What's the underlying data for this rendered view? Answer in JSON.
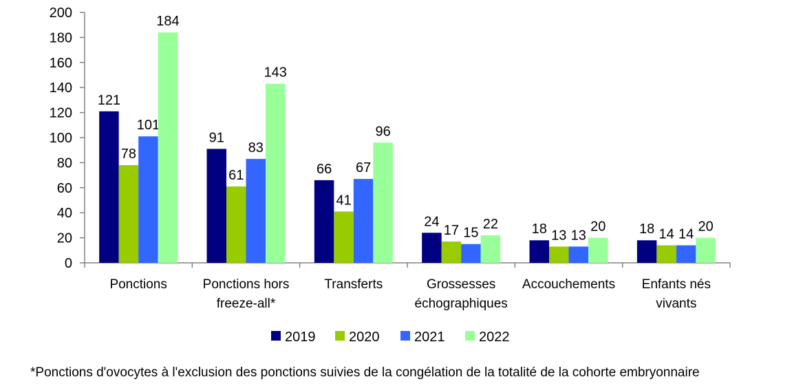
{
  "chart_data": {
    "type": "bar",
    "categories": [
      [
        "Ponctions"
      ],
      [
        "Ponctions hors",
        "freeze-all*"
      ],
      [
        "Transferts"
      ],
      [
        "Grossesses",
        "échographiques"
      ],
      [
        "Accouchements"
      ],
      [
        "Enfants nés",
        "vivants"
      ]
    ],
    "series": [
      {
        "name": "2019",
        "color": "#000080",
        "values": [
          121,
          91,
          66,
          24,
          18,
          18
        ]
      },
      {
        "name": "2020",
        "color": "#99CC00",
        "values": [
          78,
          61,
          41,
          17,
          13,
          14
        ]
      },
      {
        "name": "2021",
        "color": "#3366FF",
        "values": [
          101,
          83,
          67,
          15,
          13,
          14
        ]
      },
      {
        "name": "2022",
        "color": "#99FF99",
        "values": [
          184,
          143,
          96,
          22,
          20,
          20
        ]
      }
    ],
    "ylim": [
      0,
      200
    ],
    "yticks": [
      0,
      20,
      40,
      60,
      80,
      100,
      120,
      140,
      160,
      180,
      200
    ],
    "grid": false,
    "legend_position": "bottom",
    "data_labels": true
  },
  "footnote": "*Ponctions d'ovocytes à l'exclusion des ponctions suivies de la congélation de la totalité de la cohorte embryonnaire"
}
